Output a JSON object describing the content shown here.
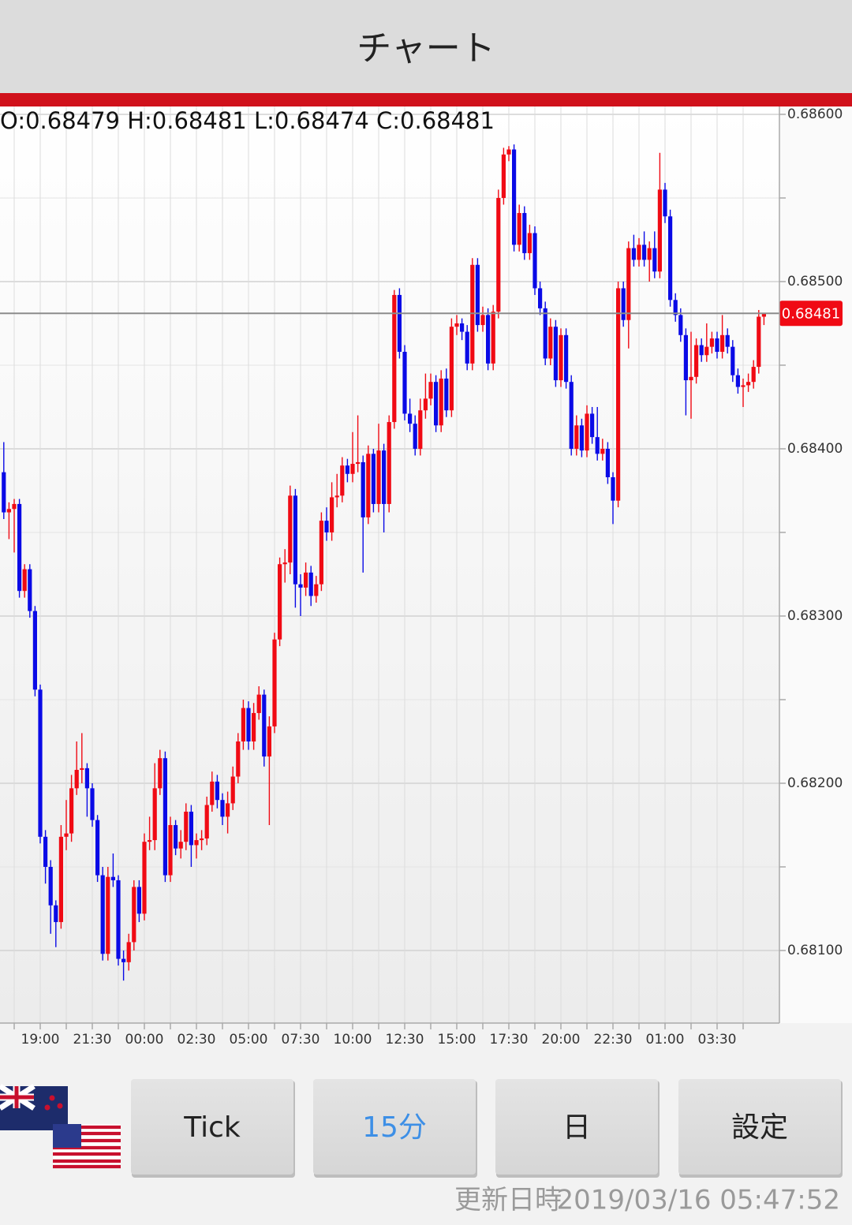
{
  "header": {
    "title": "チャート"
  },
  "chart_data": {
    "type": "candlestick",
    "info_text": "O:0.68479 H:0.68481 L:0.68474 C:0.68481",
    "categories": [
      null,
      null,
      null,
      null,
      null,
      null,
      null,
      "19:00",
      null,
      null,
      null,
      null,
      null,
      null,
      null,
      null,
      null,
      "21:30",
      null,
      null,
      null,
      null,
      null,
      null,
      null,
      null,
      null,
      "00:00",
      null,
      null,
      null,
      null,
      null,
      null,
      null,
      null,
      null,
      "02:30",
      null,
      null,
      null,
      null,
      null,
      null,
      null,
      null,
      null,
      "05:00",
      null,
      null,
      null,
      null,
      null,
      null,
      null,
      null,
      null,
      "07:30",
      null,
      null,
      null,
      null,
      null,
      null,
      null,
      null,
      null,
      "10:00",
      null,
      null,
      null,
      null,
      null,
      null,
      null,
      null,
      null,
      "12:30",
      null,
      null,
      null,
      null,
      null,
      null,
      null,
      null,
      null,
      "15:00",
      null,
      null,
      null,
      null,
      null,
      null,
      null,
      null,
      null,
      "17:30",
      null,
      null,
      null,
      null,
      null,
      null,
      null,
      null,
      null,
      "20:00",
      null,
      null,
      null,
      null,
      null,
      null,
      null,
      null,
      null,
      "22:30",
      null,
      null,
      null,
      null,
      null,
      null,
      null,
      null,
      null,
      "01:00",
      null,
      null,
      null,
      null,
      null,
      null,
      null,
      null,
      null,
      "03:30",
      null,
      null,
      null,
      null,
      null,
      null,
      null,
      null,
      null
    ],
    "open": [
      0.68386,
      0.68362,
      0.68364,
      0.68367,
      0.68315,
      0.68328,
      0.68303,
      0.68256,
      0.68168,
      0.6815,
      0.68127,
      0.68117,
      0.68168,
      0.6817,
      0.68197,
      0.68208,
      0.68209,
      0.68197,
      0.68178,
      0.68145,
      0.68098,
      0.68144,
      0.68142,
      0.68095,
      0.68093,
      0.68105,
      0.68138,
      0.68122,
      0.68165,
      0.68166,
      0.68197,
      0.68215,
      0.68145,
      0.68175,
      0.68161,
      0.68165,
      0.68183,
      0.68163,
      0.68166,
      0.68167,
      0.68187,
      0.68201,
      0.6819,
      0.6818,
      0.68188,
      0.68204,
      0.68225,
      0.68245,
      0.68225,
      0.68242,
      0.68253,
      0.68216,
      0.68234,
      0.68286,
      0.68331,
      0.68332,
      0.68372,
      0.68319,
      0.68317,
      0.68326,
      0.68312,
      0.68319,
      0.68357,
      0.6835,
      0.68371,
      0.68372,
      0.6839,
      0.68385,
      0.68391,
      0.68392,
      0.68359,
      0.68397,
      0.68367,
      0.68399,
      0.68367,
      0.68416,
      0.68492,
      0.68458,
      0.68421,
      0.68415,
      0.684,
      0.68423,
      0.6843,
      0.6844,
      0.68414,
      0.68442,
      0.68423,
      0.68473,
      0.68475,
      0.6847,
      0.68451,
      0.6851,
      0.68474,
      0.6848,
      0.68451,
      0.68482,
      0.6855,
      0.68576,
      0.68579,
      0.68522,
      0.68541,
      0.68517,
      0.68529,
      0.68496,
      0.68484,
      0.68454,
      0.68473,
      0.68441,
      0.68468,
      0.6844,
      0.684,
      0.68414,
      0.68399,
      0.68421,
      0.68407,
      0.68397,
      0.684,
      0.68383,
      0.68369,
      0.68496,
      0.68477,
      0.6852,
      0.68513,
      0.68522,
      0.68513,
      0.6852,
      0.68506,
      0.68555,
      0.68539,
      0.68489,
      0.6848,
      0.68468,
      0.68441,
      0.68443,
      0.68462,
      0.68456,
      0.68461,
      0.68466,
      0.68458,
      0.68468,
      0.68461,
      0.68444,
      0.68437,
      0.68438,
      0.6844,
      0.68449,
      0.68479
    ],
    "high": [
      0.68404,
      0.68368,
      0.6837,
      0.6837,
      0.68331,
      0.68331,
      0.68306,
      0.68259,
      0.68172,
      0.68154,
      0.6813,
      0.68175,
      0.6819,
      0.68205,
      0.68225,
      0.6823,
      0.68212,
      0.682,
      0.68181,
      0.6815,
      0.6815,
      0.68158,
      0.68145,
      0.681,
      0.6811,
      0.68142,
      0.68142,
      0.6817,
      0.6818,
      0.68212,
      0.6822,
      0.68219,
      0.6818,
      0.68178,
      0.68172,
      0.68188,
      0.68187,
      0.6817,
      0.68172,
      0.68192,
      0.68207,
      0.68205,
      0.68194,
      0.68195,
      0.6821,
      0.6823,
      0.6825,
      0.68249,
      0.68248,
      0.68258,
      0.68256,
      0.6824,
      0.6829,
      0.68335,
      0.6834,
      0.68378,
      0.68376,
      0.68325,
      0.68332,
      0.6833,
      0.68324,
      0.68362,
      0.68365,
      0.6838,
      0.68385,
      0.68395,
      0.68394,
      0.6841,
      0.6842,
      0.68396,
      0.68402,
      0.684,
      0.68415,
      0.68403,
      0.6842,
      0.68495,
      0.68496,
      0.68462,
      0.6843,
      0.6842,
      0.6843,
      0.68445,
      0.68445,
      0.68444,
      0.68447,
      0.68448,
      0.68478,
      0.6848,
      0.68478,
      0.68474,
      0.68514,
      0.68514,
      0.68485,
      0.68484,
      0.68486,
      0.68555,
      0.6858,
      0.68581,
      0.68582,
      0.68546,
      0.68545,
      0.68534,
      0.68533,
      0.685,
      0.68488,
      0.68478,
      0.68477,
      0.68472,
      0.68472,
      0.68444,
      0.6842,
      0.68418,
      0.68426,
      0.68425,
      0.68425,
      0.68406,
      0.68404,
      0.68386,
      0.685,
      0.685,
      0.68524,
      0.68528,
      0.68526,
      0.6853,
      0.68524,
      0.6853,
      0.68577,
      0.68559,
      0.68543,
      0.68493,
      0.68484,
      0.68472,
      0.6847,
      0.68466,
      0.68466,
      0.68475,
      0.6847,
      0.6847,
      0.6848,
      0.68472,
      0.68465,
      0.68448,
      0.68442,
      0.68445,
      0.68453,
      0.68483,
      0.68481
    ],
    "low": [
      0.68358,
      0.68346,
      0.68338,
      0.68311,
      0.68311,
      0.68299,
      0.68252,
      0.68164,
      0.6814,
      0.6811,
      0.68102,
      0.68113,
      0.6816,
      0.68165,
      0.68193,
      0.682,
      0.6818,
      0.68174,
      0.68141,
      0.68094,
      0.68094,
      0.68138,
      0.68091,
      0.68082,
      0.68088,
      0.681,
      0.68117,
      0.68118,
      0.6816,
      0.6816,
      0.68193,
      0.68141,
      0.68141,
      0.68157,
      0.68155,
      0.6816,
      0.6815,
      0.68155,
      0.6816,
      0.68163,
      0.68183,
      0.68185,
      0.68175,
      0.6817,
      0.68184,
      0.682,
      0.6822,
      0.6822,
      0.6822,
      0.68238,
      0.6821,
      0.68175,
      0.6823,
      0.68282,
      0.6832,
      0.68325,
      0.68305,
      0.683,
      0.68312,
      0.68306,
      0.68308,
      0.68315,
      0.68345,
      0.68345,
      0.68365,
      0.68368,
      0.6838,
      0.6838,
      0.68386,
      0.68326,
      0.68355,
      0.68362,
      0.68362,
      0.6835,
      0.68362,
      0.68412,
      0.68454,
      0.68417,
      0.6841,
      0.68396,
      0.68396,
      0.68418,
      0.68426,
      0.6841,
      0.6841,
      0.68419,
      0.68419,
      0.68468,
      0.68465,
      0.68447,
      0.68447,
      0.6847,
      0.6847,
      0.68447,
      0.68447,
      0.68478,
      0.68546,
      0.68572,
      0.68518,
      0.68518,
      0.68513,
      0.68513,
      0.68492,
      0.6848,
      0.6845,
      0.6845,
      0.68437,
      0.68437,
      0.68436,
      0.68396,
      0.68396,
      0.68395,
      0.68395,
      0.68403,
      0.68393,
      0.68393,
      0.68379,
      0.68355,
      0.68365,
      0.68473,
      0.6846,
      0.68509,
      0.68509,
      0.68509,
      0.685,
      0.68502,
      0.68502,
      0.68535,
      0.68485,
      0.68476,
      0.68464,
      0.6842,
      0.68418,
      0.68439,
      0.68452,
      0.68452,
      0.68457,
      0.68454,
      0.68454,
      0.68457,
      0.6844,
      0.68433,
      0.68425,
      0.68434,
      0.68436,
      0.68445,
      0.68474
    ],
    "close": [
      0.68362,
      0.68364,
      0.68367,
      0.68315,
      0.68328,
      0.68303,
      0.68256,
      0.68168,
      0.6815,
      0.68127,
      0.68117,
      0.68168,
      0.6817,
      0.68197,
      0.68208,
      0.68209,
      0.68197,
      0.68178,
      0.68145,
      0.68098,
      0.68144,
      0.68142,
      0.68095,
      0.68093,
      0.68105,
      0.68138,
      0.68122,
      0.68165,
      0.68166,
      0.68197,
      0.68215,
      0.68145,
      0.68175,
      0.68161,
      0.68165,
      0.68183,
      0.68163,
      0.68166,
      0.68167,
      0.68187,
      0.68201,
      0.6819,
      0.6818,
      0.68188,
      0.68204,
      0.68225,
      0.68245,
      0.68225,
      0.68242,
      0.68253,
      0.68216,
      0.68234,
      0.68286,
      0.68331,
      0.68332,
      0.68372,
      0.68319,
      0.68317,
      0.68326,
      0.68312,
      0.68319,
      0.68357,
      0.6835,
      0.68371,
      0.68372,
      0.6839,
      0.68385,
      0.68391,
      0.68392,
      0.68359,
      0.68397,
      0.68367,
      0.68399,
      0.68367,
      0.68416,
      0.68492,
      0.68458,
      0.68421,
      0.68415,
      0.684,
      0.68423,
      0.6843,
      0.6844,
      0.68414,
      0.68442,
      0.68423,
      0.68473,
      0.68475,
      0.6847,
      0.68451,
      0.6851,
      0.68474,
      0.6848,
      0.68451,
      0.68482,
      0.6855,
      0.68576,
      0.68579,
      0.68522,
      0.68541,
      0.68517,
      0.68529,
      0.68496,
      0.68484,
      0.68454,
      0.68473,
      0.68441,
      0.68468,
      0.6844,
      0.684,
      0.68414,
      0.68399,
      0.68421,
      0.68407,
      0.68397,
      0.684,
      0.68383,
      0.68369,
      0.68496,
      0.68477,
      0.6852,
      0.68513,
      0.68522,
      0.68513,
      0.6852,
      0.68506,
      0.68555,
      0.68539,
      0.68489,
      0.6848,
      0.68468,
      0.68441,
      0.68443,
      0.68462,
      0.68456,
      0.68461,
      0.68466,
      0.68458,
      0.68468,
      0.68461,
      0.68444,
      0.68437,
      0.68438,
      0.6844,
      0.68449,
      0.68479,
      0.68481
    ],
    "up_color": "#f00a14",
    "down_color": "#0a0ae6",
    "ylim": [
      0.680566,
      0.686047
    ],
    "yticks": [
      {
        "value": 0.681,
        "label": "0.68100"
      },
      {
        "value": 0.682,
        "label": "0.68200"
      },
      {
        "value": 0.683,
        "label": "0.68300"
      },
      {
        "value": 0.684,
        "label": "0.68400"
      },
      {
        "value": 0.685,
        "label": "0.68500"
      },
      {
        "value": 0.686,
        "label": "0.68600"
      }
    ],
    "minor_yticks": [
      0.6815,
      0.6825,
      0.6835,
      0.6845,
      0.6855
    ],
    "last_price": 0.68481,
    "last_price_color": "#f00a14",
    "grid": true
  },
  "buttons": [
    "Tick",
    "15分",
    "日",
    "設定"
  ],
  "selected_button": 1,
  "footer": {
    "label": "更新日時",
    "timestamp": "2019/03/16 05:47:52"
  }
}
